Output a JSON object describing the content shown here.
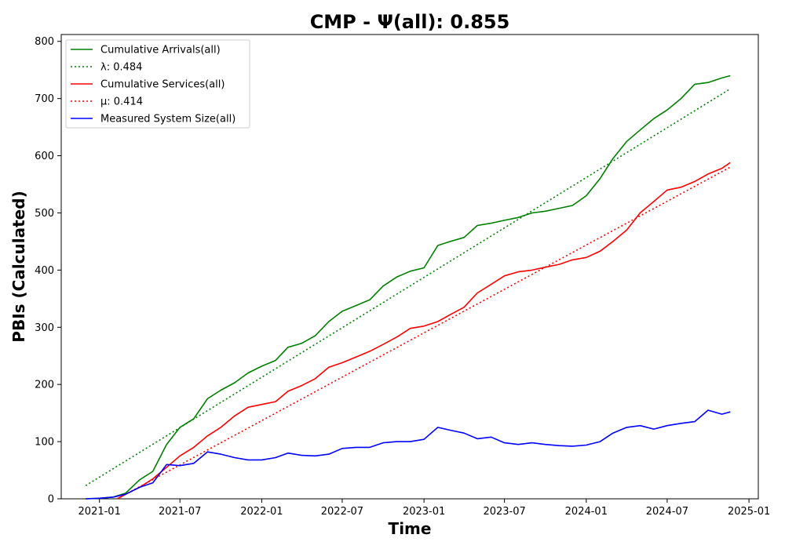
{
  "chart_data": {
    "type": "line",
    "title": "CMP -  Ψ(all): 0.855",
    "xlabel": "Time",
    "ylabel": "PBIs (Calculated)",
    "xlim": [
      "2020-10-07",
      "2025-01-22"
    ],
    "ylim": [
      0,
      812
    ],
    "xticks": [
      "2021-01",
      "2021-07",
      "2022-01",
      "2022-07",
      "2023-01",
      "2023-07",
      "2024-01",
      "2024-07",
      "2025-01"
    ],
    "yticks": [
      0,
      100,
      200,
      300,
      400,
      500,
      600,
      700,
      800
    ],
    "grid": false,
    "legend_position": "top-left",
    "series": [
      {
        "name": "Cumulative Arrivals(all)",
        "color": "#008000",
        "style": "solid",
        "x": [
          "2020-12-01",
          "2021-01-01",
          "2021-02-01",
          "2021-03-01",
          "2021-04-01",
          "2021-05-01",
          "2021-06-01",
          "2021-07-01",
          "2021-08-01",
          "2021-09-01",
          "2021-10-01",
          "2021-11-01",
          "2021-12-01",
          "2022-01-01",
          "2022-02-01",
          "2022-03-01",
          "2022-04-01",
          "2022-05-01",
          "2022-06-01",
          "2022-07-01",
          "2022-08-01",
          "2022-09-01",
          "2022-10-01",
          "2022-11-01",
          "2022-12-01",
          "2023-01-01",
          "2023-02-01",
          "2023-03-01",
          "2023-04-01",
          "2023-05-01",
          "2023-06-01",
          "2023-07-01",
          "2023-08-01",
          "2023-09-01",
          "2023-10-01",
          "2023-11-01",
          "2023-12-01",
          "2024-01-01",
          "2024-02-01",
          "2024-03-01",
          "2024-04-01",
          "2024-05-01",
          "2024-06-01",
          "2024-07-01",
          "2024-08-01",
          "2024-09-01",
          "2024-10-01",
          "2024-11-01",
          "2024-11-20"
        ],
        "values": [
          0,
          1,
          3,
          10,
          33,
          48,
          95,
          125,
          140,
          175,
          190,
          203,
          220,
          232,
          242,
          265,
          272,
          285,
          310,
          328,
          338,
          348,
          372,
          388,
          398,
          404,
          443,
          450,
          457,
          478,
          482,
          487,
          492,
          500,
          503,
          508,
          513,
          530,
          560,
          595,
          625,
          645,
          665,
          680,
          700,
          725,
          728,
          736,
          740
        ]
      },
      {
        "name": "λ: 0.484",
        "color": "#008000",
        "style": "dotted",
        "x": [
          "2020-12-01",
          "2024-11-20"
        ],
        "values": [
          23,
          717
        ]
      },
      {
        "name": "Cumulative Services(all)",
        "color": "#ff0000",
        "style": "solid",
        "x": [
          "2021-02-10",
          "2021-03-01",
          "2021-04-01",
          "2021-05-01",
          "2021-06-01",
          "2021-07-01",
          "2021-08-01",
          "2021-09-01",
          "2021-10-01",
          "2021-11-01",
          "2021-12-01",
          "2022-01-01",
          "2022-02-01",
          "2022-03-01",
          "2022-04-01",
          "2022-05-01",
          "2022-06-01",
          "2022-07-01",
          "2022-08-01",
          "2022-09-01",
          "2022-10-01",
          "2022-11-01",
          "2022-12-01",
          "2023-01-01",
          "2023-02-01",
          "2023-03-01",
          "2023-04-01",
          "2023-05-01",
          "2023-06-01",
          "2023-07-01",
          "2023-08-01",
          "2023-09-01",
          "2023-10-01",
          "2023-11-01",
          "2023-12-01",
          "2024-01-01",
          "2024-02-01",
          "2024-03-01",
          "2024-04-01",
          "2024-05-01",
          "2024-06-01",
          "2024-07-01",
          "2024-08-01",
          "2024-09-01",
          "2024-10-01",
          "2024-11-01",
          "2024-11-20"
        ],
        "values": [
          0,
          8,
          20,
          35,
          55,
          75,
          90,
          110,
          125,
          145,
          160,
          165,
          170,
          188,
          198,
          210,
          230,
          238,
          248,
          258,
          270,
          283,
          298,
          302,
          310,
          322,
          335,
          360,
          375,
          390,
          397,
          400,
          405,
          410,
          418,
          422,
          433,
          450,
          470,
          500,
          520,
          540,
          545,
          555,
          568,
          578,
          588
        ]
      },
      {
        "name": "μ: 0.414",
        "color": "#ff0000",
        "style": "dotted",
        "x": [
          "2021-02-10",
          "2024-11-20"
        ],
        "values": [
          0,
          580
        ]
      },
      {
        "name": "Measured System Size(all)",
        "color": "#0000ff",
        "style": "solid",
        "x": [
          "2020-12-01",
          "2021-01-01",
          "2021-02-01",
          "2021-03-01",
          "2021-04-01",
          "2021-05-01",
          "2021-06-01",
          "2021-07-01",
          "2021-08-01",
          "2021-09-01",
          "2021-10-01",
          "2021-11-01",
          "2021-12-01",
          "2022-01-01",
          "2022-02-01",
          "2022-03-01",
          "2022-04-01",
          "2022-05-01",
          "2022-06-01",
          "2022-07-01",
          "2022-08-01",
          "2022-09-01",
          "2022-10-01",
          "2022-11-01",
          "2022-12-01",
          "2023-01-01",
          "2023-02-01",
          "2023-03-01",
          "2023-04-01",
          "2023-05-01",
          "2023-06-01",
          "2023-07-01",
          "2023-08-01",
          "2023-09-01",
          "2023-10-01",
          "2023-11-01",
          "2023-12-01",
          "2024-01-01",
          "2024-02-01",
          "2024-03-01",
          "2024-04-01",
          "2024-05-01",
          "2024-06-01",
          "2024-07-01",
          "2024-08-01",
          "2024-09-01",
          "2024-10-01",
          "2024-11-01",
          "2024-11-20"
        ],
        "values": [
          0,
          1,
          3,
          8,
          20,
          28,
          60,
          58,
          62,
          82,
          78,
          72,
          68,
          68,
          72,
          80,
          76,
          75,
          78,
          88,
          90,
          90,
          98,
          100,
          100,
          104,
          125,
          120,
          115,
          105,
          108,
          98,
          95,
          98,
          95,
          93,
          92,
          94,
          100,
          115,
          125,
          128,
          122,
          128,
          132,
          135,
          155,
          148,
          152
        ]
      }
    ]
  }
}
